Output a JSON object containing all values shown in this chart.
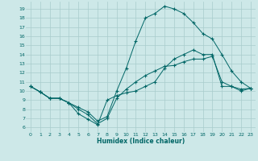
{
  "xlabel": "Humidex (Indice chaleur)",
  "background_color": "#cde8e8",
  "grid_color": "#a8cccc",
  "line_color": "#006666",
  "xlim": [
    -0.5,
    23.5
  ],
  "ylim": [
    5.5,
    19.8
  ],
  "xticks": [
    0,
    1,
    2,
    3,
    4,
    5,
    6,
    7,
    8,
    9,
    10,
    11,
    12,
    13,
    14,
    15,
    16,
    17,
    18,
    19,
    20,
    21,
    22,
    23
  ],
  "yticks": [
    6,
    7,
    8,
    9,
    10,
    11,
    12,
    13,
    14,
    15,
    16,
    17,
    18,
    19
  ],
  "line_upper_x": [
    0,
    1,
    2,
    3,
    4,
    5,
    6,
    7,
    8,
    9,
    10,
    11,
    12,
    13,
    14,
    15,
    16,
    17,
    18,
    19,
    20,
    21,
    22,
    23
  ],
  "line_upper_y": [
    10.5,
    9.9,
    9.2,
    9.2,
    8.7,
    8.2,
    7.7,
    6.7,
    7.2,
    10.0,
    12.5,
    15.5,
    18.0,
    18.5,
    19.3,
    19.0,
    18.5,
    17.5,
    16.3,
    15.7,
    14.0,
    12.2,
    11.0,
    10.3
  ],
  "line_mid_x": [
    0,
    1,
    2,
    3,
    4,
    5,
    6,
    7,
    8,
    9,
    10,
    11,
    12,
    13,
    14,
    15,
    16,
    17,
    18,
    19,
    20,
    21,
    22,
    23
  ],
  "line_mid_y": [
    10.5,
    9.9,
    9.2,
    9.2,
    8.7,
    8.0,
    7.4,
    6.4,
    7.0,
    9.2,
    10.2,
    11.0,
    11.7,
    12.2,
    12.7,
    12.8,
    13.2,
    13.5,
    13.5,
    13.8,
    11.0,
    10.5,
    10.0,
    10.3
  ],
  "line_low_x": [
    0,
    1,
    2,
    3,
    4,
    5,
    6,
    7,
    8,
    9,
    10,
    11,
    12,
    13,
    14,
    15,
    16,
    17,
    18,
    19,
    20,
    21,
    22,
    23
  ],
  "line_low_y": [
    10.5,
    9.9,
    9.2,
    9.2,
    8.7,
    7.5,
    6.9,
    6.3,
    9.0,
    9.5,
    9.8,
    10.0,
    10.5,
    11.0,
    12.5,
    13.5,
    14.0,
    14.5,
    14.0,
    14.0,
    10.5,
    10.5,
    10.2,
    10.3
  ]
}
